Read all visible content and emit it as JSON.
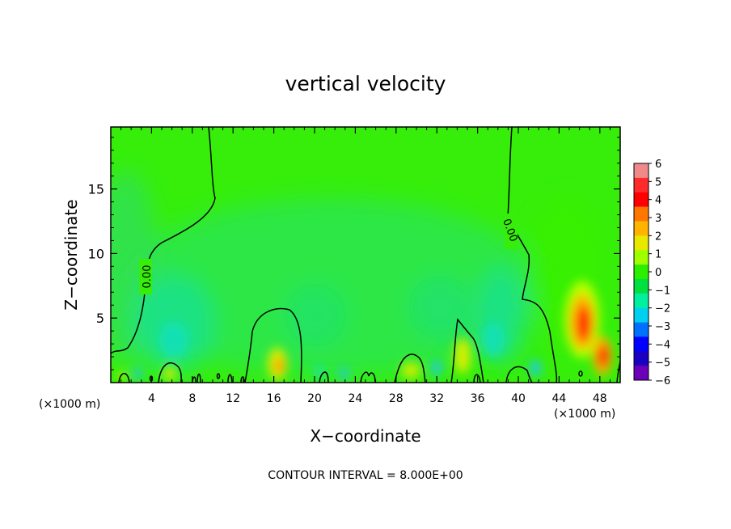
{
  "chart_data": {
    "type": "heatmap",
    "title": "vertical velocity",
    "xlabel": "X−coordinate",
    "ylabel": "Z−coordinate",
    "x_unit_left": "(×1000 m)",
    "x_unit_right": "(×1000 m)",
    "xlim": [
      0,
      50
    ],
    "ylim": [
      0,
      19.8
    ],
    "x_ticks": [
      4,
      8,
      12,
      16,
      20,
      24,
      28,
      32,
      36,
      40,
      44,
      48
    ],
    "y_ticks": [
      5,
      10,
      15
    ],
    "grid": false,
    "colorbar": {
      "ticks": [
        "6",
        "5",
        "4",
        "3",
        "2",
        "1",
        "0",
        "−1",
        "−2",
        "−3",
        "−4",
        "−5",
        "−6"
      ],
      "range": [
        -6,
        6
      ],
      "colors": [
        "#f08a8a",
        "#ff2a2a",
        "#ff0000",
        "#ff7700",
        "#ffb400",
        "#e8e800",
        "#a0ff00",
        "#2cef00",
        "#00e040",
        "#00f0a0",
        "#00d0f0",
        "#0070ff",
        "#0000ff",
        "#1a00c0",
        "#6a00b8"
      ]
    },
    "contour_label": "0.00",
    "footnote": "CONTOUR INTERVAL = 8.000E+00"
  }
}
